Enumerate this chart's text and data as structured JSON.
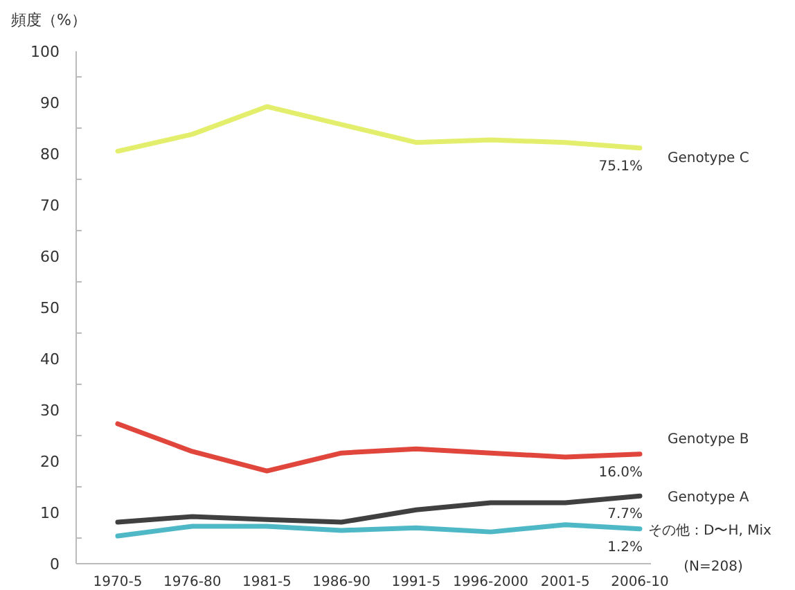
{
  "chart_data": {
    "type": "line",
    "ylabel": "頻度（%）",
    "categories": [
      "1970-5",
      "1976-80",
      "1981-5",
      "1986-90",
      "1991-5",
      "1996-2000",
      "2001-5",
      "2006-10"
    ],
    "series": [
      {
        "name": "Genotype C",
        "color": "#e3ef6c",
        "values": [
          80.5,
          83.8,
          89.2,
          85.7,
          82.2,
          82.7,
          82.2,
          81.1
        ]
      },
      {
        "name": "Genotype B",
        "color": "#e0463c",
        "values": [
          27.3,
          21.9,
          18.1,
          21.6,
          22.4,
          21.6,
          20.8,
          21.4
        ]
      },
      {
        "name": "Genotype A",
        "color": "#404040",
        "values": [
          8.1,
          9.2,
          8.6,
          8.1,
          10.5,
          11.9,
          11.9,
          13.2
        ]
      },
      {
        "name": "その他：D〜H, Mix",
        "color": "#4fb8c6",
        "values": [
          5.4,
          7.3,
          7.3,
          6.5,
          7.0,
          6.2,
          7.6,
          6.8
        ]
      }
    ],
    "ylim": [
      0,
      100
    ],
    "yticks": [
      0,
      {
        "value": 5,
        "label": null
      },
      10,
      {
        "value": 15,
        "label": null
      },
      20,
      {
        "value": 25,
        "label": null
      },
      30,
      {
        "value": 35,
        "label": null
      },
      40,
      {
        "value": 45,
        "label": null
      },
      50,
      {
        "value": 55,
        "label": null
      },
      60,
      {
        "value": 65,
        "label": null
      },
      70,
      {
        "value": 75,
        "label": null
      },
      80,
      {
        "value": 85,
        "label": null
      },
      90,
      {
        "value": 95,
        "label": null
      },
      100
    ],
    "annotations": [
      "75.1%",
      "16.0%",
      "7.7%",
      "1.2%",
      "(N=208)"
    ],
    "grid": false,
    "legend": false,
    "marker": "none",
    "line_style": "solid"
  }
}
